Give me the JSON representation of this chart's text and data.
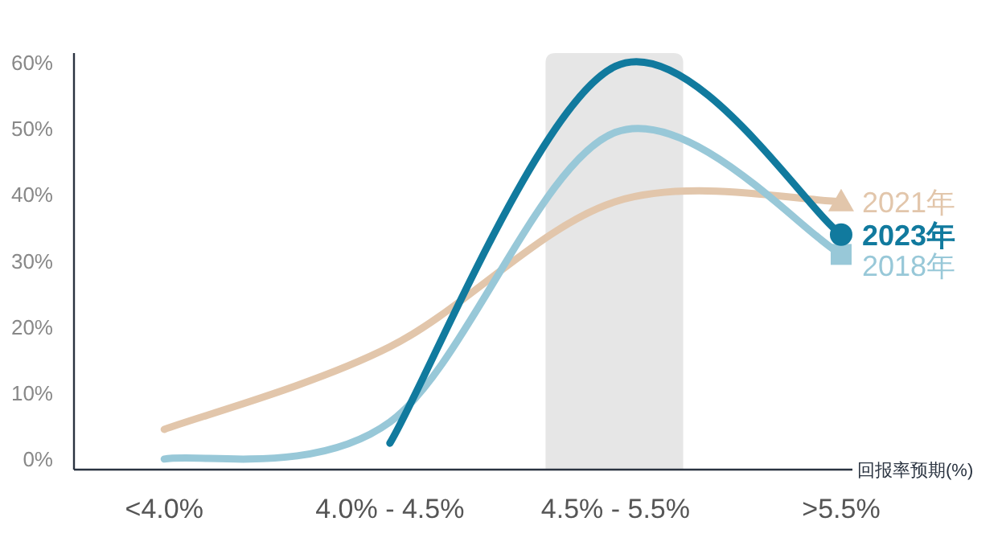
{
  "chart_data": {
    "type": "line",
    "xlabel": "回报率预期(%)",
    "categories": [
      "<4.0%",
      "4.0% - 4.5%",
      "4.5% - 5.5%",
      ">5.5%"
    ],
    "ylim": [
      -1.6,
      61.5
    ],
    "yticks": [
      {
        "value": 0,
        "label": "0%"
      },
      {
        "value": 10,
        "label": "10%"
      },
      {
        "value": 20,
        "label": "20%"
      },
      {
        "value": 30,
        "label": "30%"
      },
      {
        "value": 40,
        "label": "40%"
      },
      {
        "value": 50,
        "label": "50%"
      },
      {
        "value": 60,
        "label": "60%"
      }
    ],
    "series": [
      {
        "name": "2021年",
        "color": "#e2c6ab",
        "values": [
          4.5,
          17,
          39,
          39
        ]
      },
      {
        "name": "2018年",
        "color": "#98c8d8",
        "values": [
          0,
          5.6,
          49.5,
          31
        ]
      },
      {
        "name": "2023年",
        "color": "#117a9e",
        "values": [
          null,
          2.4,
          59.5,
          34
        ]
      }
    ]
  }
}
